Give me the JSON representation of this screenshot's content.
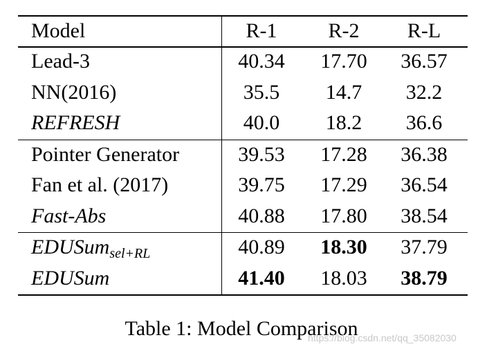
{
  "table": {
    "header": [
      "Model",
      "R-1",
      "R-2",
      "R-L"
    ],
    "groups": [
      [
        [
          "Lead-3",
          "40.34",
          "17.70",
          "36.57"
        ],
        [
          "NN(2016)",
          "35.5",
          "14.7",
          "32.2"
        ],
        [
          {
            "text": "REFRESH",
            "italic": true
          },
          "40.0",
          "18.2",
          "36.6"
        ]
      ],
      [
        [
          "Pointer Generator",
          "39.53",
          "17.28",
          "36.38"
        ],
        [
          "Fan et al. (2017)",
          "39.75",
          "17.29",
          "36.54"
        ],
        [
          {
            "text": "Fast-Abs",
            "italic": true
          },
          "40.88",
          "17.80",
          "38.54"
        ]
      ],
      [
        [
          {
            "text": "EDUSum",
            "subscript": "sel+RL",
            "italic": true
          },
          "40.89",
          {
            "text": "18.30",
            "bold": true
          },
          "37.79"
        ],
        [
          {
            "text": "EDUSum",
            "italic": true
          },
          {
            "text": "41.40",
            "bold": true
          },
          "18.03",
          {
            "text": "38.79",
            "bold": true
          }
        ]
      ]
    ],
    "caption": "Table 1: Model Comparison",
    "watermark": "https://blog.csdn.net/qq_35082030"
  }
}
